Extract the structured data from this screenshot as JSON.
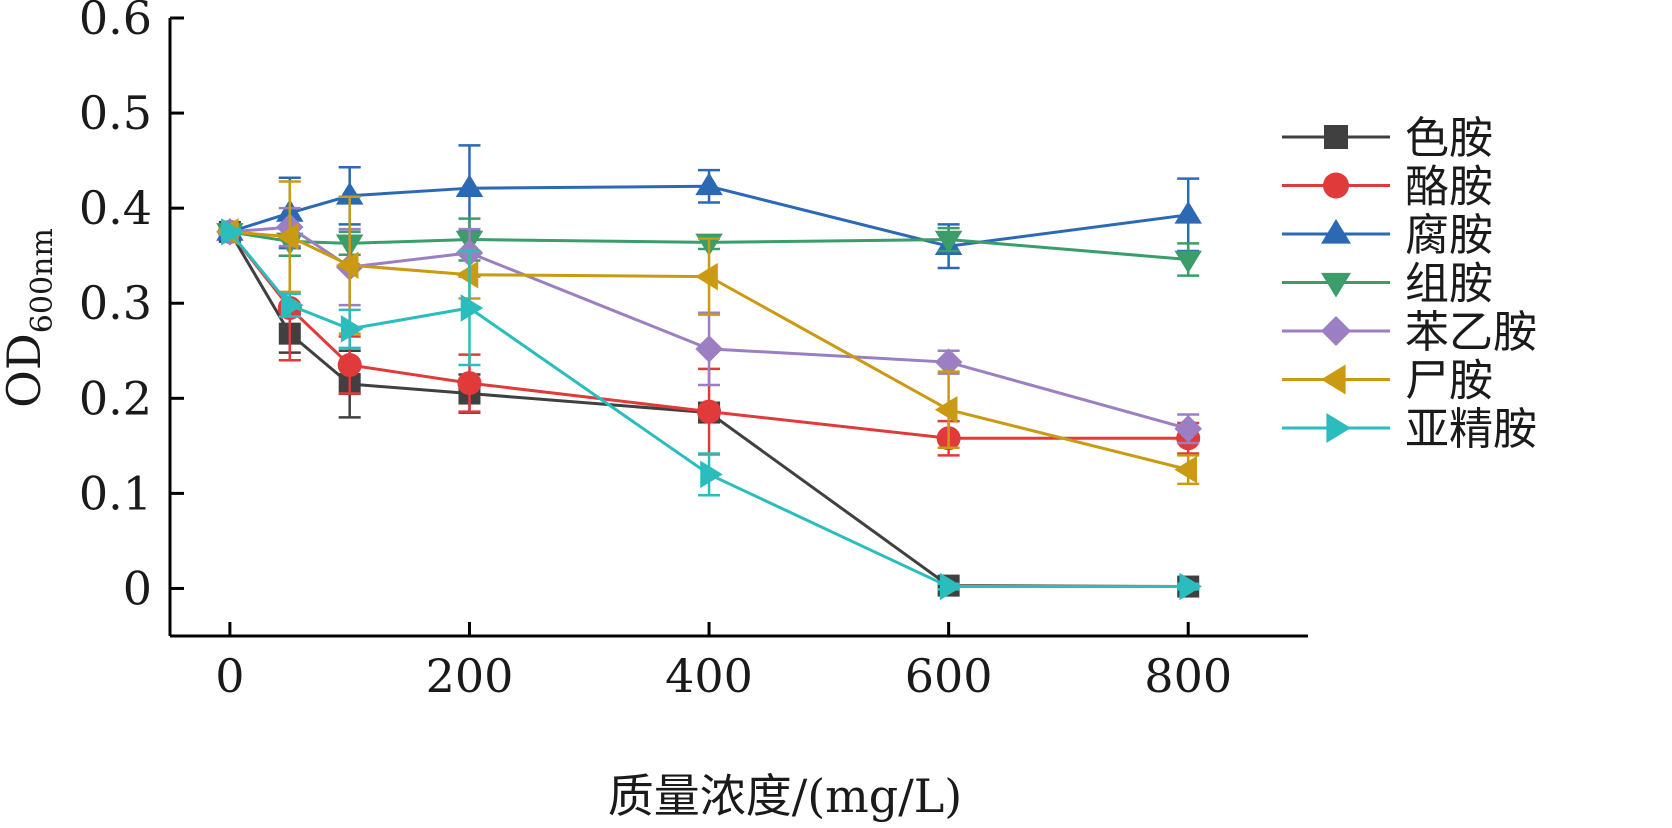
{
  "chart_data": {
    "type": "line",
    "xlabel": "质量浓度/(mg/L)",
    "ylabel_main": "OD",
    "ylabel_sub": "600nm",
    "xlim": [
      -50,
      900
    ],
    "ylim": [
      -0.05,
      0.6
    ],
    "x_ticks": [
      0,
      200,
      400,
      600,
      800
    ],
    "y_ticks": [
      0,
      0.1,
      0.2,
      0.3,
      0.4,
      0.5,
      0.6
    ],
    "x_tick_labels": [
      "0",
      "200",
      "400",
      "600",
      "800"
    ],
    "y_tick_labels": [
      "0",
      "0.1",
      "0.2",
      "0.3",
      "0.4",
      "0.5",
      "0.6"
    ],
    "legend_position": "right",
    "x": [
      0,
      50,
      100,
      200,
      400,
      600,
      800
    ],
    "series": [
      {
        "name": "色胺",
        "color": "#404040",
        "marker": "square",
        "values": [
          0.375,
          0.268,
          0.215,
          0.205,
          0.185,
          0.003,
          0.002
        ],
        "errors": [
          0.003,
          0.02,
          0.035,
          0.02,
          0.01,
          0.003,
          0.003
        ]
      },
      {
        "name": "酪胺",
        "color": "#e03a3a",
        "marker": "circle",
        "values": [
          0.375,
          0.295,
          0.235,
          0.216,
          0.186,
          0.158,
          0.158
        ],
        "errors": [
          0.003,
          0.055,
          0.03,
          0.03,
          0.045,
          0.018,
          0.016
        ]
      },
      {
        "name": "腐胺",
        "color": "#2c69b5",
        "marker": "triangle-up",
        "values": [
          0.375,
          0.395,
          0.413,
          0.421,
          0.423,
          0.36,
          0.393
        ],
        "errors": [
          0.003,
          0.037,
          0.03,
          0.045,
          0.017,
          0.023,
          0.038
        ]
      },
      {
        "name": "组胺",
        "color": "#3a9d6a",
        "marker": "triangle-down",
        "values": [
          0.375,
          0.365,
          0.363,
          0.367,
          0.364,
          0.367,
          0.346
        ],
        "errors": [
          0.003,
          0.015,
          0.012,
          0.022,
          0.007,
          0.012,
          0.017
        ]
      },
      {
        "name": "苯乙胺",
        "color": "#9b7fc2",
        "marker": "diamond",
        "values": [
          0.375,
          0.38,
          0.338,
          0.353,
          0.252,
          0.238,
          0.168
        ],
        "errors": [
          0.003,
          0.02,
          0.04,
          0.025,
          0.038,
          0.012,
          0.015
        ]
      },
      {
        "name": "尸胺",
        "color": "#c99a12",
        "marker": "triangle-left",
        "values": [
          0.375,
          0.37,
          0.34,
          0.33,
          0.328,
          0.188,
          0.125
        ],
        "errors": [
          0.003,
          0.058,
          0.072,
          0.025,
          0.04,
          0.04,
          0.015
        ]
      },
      {
        "name": "亚精胺",
        "color": "#2bbdbd",
        "marker": "triangle-right",
        "values": [
          0.375,
          0.298,
          0.273,
          0.295,
          0.12,
          0.002,
          0.002
        ],
        "errors": [
          0.003,
          0.012,
          0.02,
          0.06,
          0.022,
          0.003,
          0.003
        ]
      }
    ]
  }
}
